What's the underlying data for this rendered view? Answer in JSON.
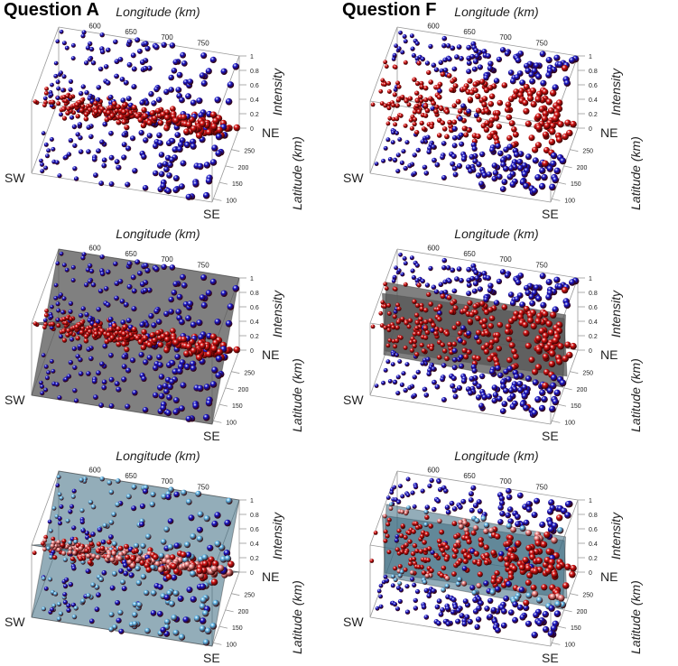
{
  "figure": {
    "titles": [
      "Question A",
      "Question F"
    ]
  },
  "chart_data": {
    "type": "scatter3d",
    "panels": [
      {
        "question": "Question A",
        "row": 1,
        "surface": "none"
      },
      {
        "question": "Question F",
        "row": 1,
        "surface": "none"
      },
      {
        "question": "Question A",
        "row": 2,
        "surface": "grey"
      },
      {
        "question": "Question F",
        "row": 2,
        "surface": "grey"
      },
      {
        "question": "Question A",
        "row": 3,
        "surface": "translucent"
      },
      {
        "question": "Question F",
        "row": 3,
        "surface": "translucent"
      }
    ],
    "axes": {
      "x": {
        "label": "Longitude (km)",
        "ticks": [
          "600",
          "650",
          "700",
          "750"
        ]
      },
      "y": {
        "label": "Latitude (km)",
        "ticks": [
          "100",
          "150",
          "200",
          "250"
        ]
      },
      "z": {
        "label": "Intensity",
        "ticks": [
          "0",
          "0.2",
          "0.4",
          "0.6",
          "0.8",
          "1"
        ],
        "range": [
          0,
          1
        ]
      }
    },
    "corners": {
      "sw": "SW",
      "se": "SE",
      "ne": "NE"
    },
    "series_colors": {
      "red": "#d41414",
      "blue": "#1414c8",
      "light_red": "#f08a8a",
      "light_blue": "#5ab4e6",
      "surface": "#555555"
    }
  }
}
